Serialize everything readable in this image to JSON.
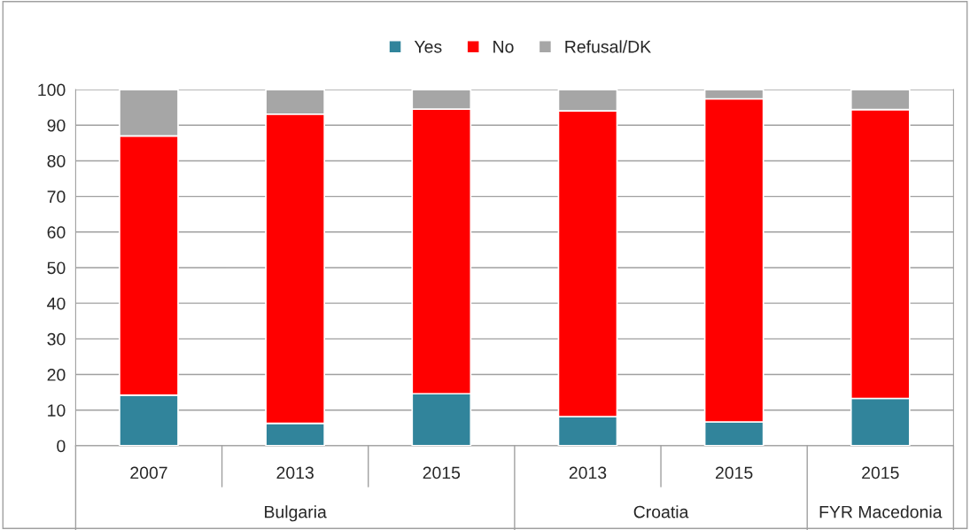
{
  "chart_data": {
    "type": "bar",
    "stacked": true,
    "categories": [
      "2007",
      "2013",
      "2015",
      "2013",
      "2015",
      "2015"
    ],
    "series": [
      {
        "name": "Yes",
        "color": "#31849b",
        "values": [
          14.2,
          6.3,
          14.6,
          8.2,
          6.7,
          13.3
        ]
      },
      {
        "name": "No",
        "color": "#ff0000",
        "values": [
          72.8,
          86.8,
          79.9,
          85.8,
          90.7,
          81.1
        ]
      },
      {
        "name": "Refusal/DK",
        "color": "#a6a6a6",
        "values": [
          13,
          6.9,
          5.5,
          6,
          2.6,
          5.6
        ]
      }
    ],
    "ylim": [
      0,
      100
    ],
    "yticks": [
      0,
      10,
      20,
      30,
      40,
      50,
      60,
      70,
      80,
      90,
      100
    ],
    "grid": "y",
    "legend": "top",
    "annotations": [
      "Bulgaria",
      "Croatia",
      "FYR Macedonia"
    ]
  }
}
